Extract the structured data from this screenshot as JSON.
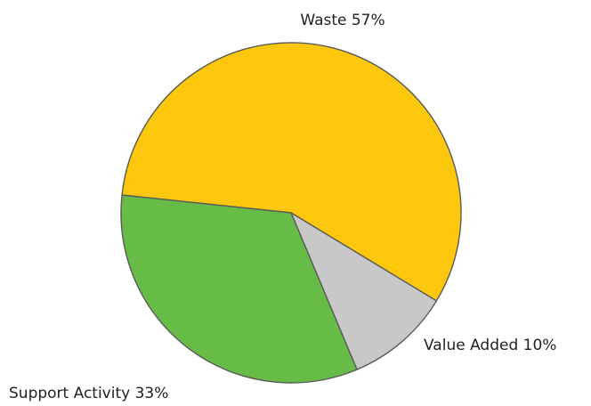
{
  "chart_data": {
    "type": "pie",
    "title": "",
    "slices": [
      {
        "label": "Waste",
        "value": 57,
        "display": "Waste 57%",
        "color": "#fcc70c"
      },
      {
        "label": "Value Added",
        "value": 10,
        "display": "Value Added 10%",
        "color": "#c8c8c8"
      },
      {
        "label": "Support Activity",
        "value": 33,
        "display": "Support Activity 33%",
        "color": "#67bb47"
      }
    ],
    "legend": "none",
    "labels": "outside"
  }
}
